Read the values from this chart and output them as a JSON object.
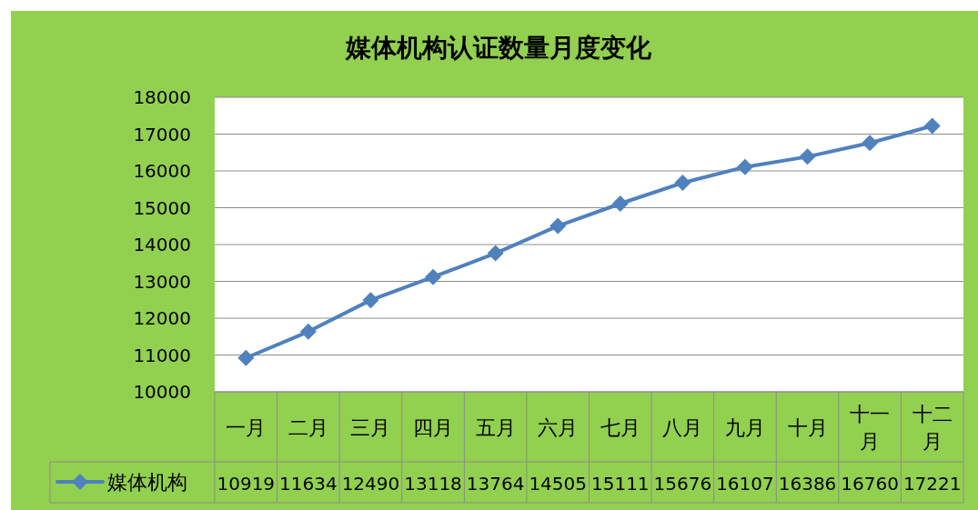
{
  "chart_data": {
    "type": "line",
    "title": "媒体机构认证数量月度变化",
    "categories": [
      "一月",
      "二月",
      "三月",
      "四月",
      "五月",
      "六月",
      "七月",
      "八月",
      "九月",
      "十月",
      "十一月",
      "十二月"
    ],
    "series": [
      {
        "name": "媒体机构",
        "color": "#4f81bd",
        "values": [
          10919,
          11634,
          12490,
          13118,
          13764,
          14505,
          15111,
          15676,
          16107,
          16386,
          16760,
          17221
        ]
      }
    ],
    "ylim": [
      10000,
      18000
    ],
    "yticks": [
      10000,
      11000,
      12000,
      13000,
      14000,
      15000,
      16000,
      17000,
      18000
    ],
    "grid": "y",
    "marker": "diamond",
    "line_style": "solid",
    "data_labels": true,
    "legend": "bottom"
  }
}
